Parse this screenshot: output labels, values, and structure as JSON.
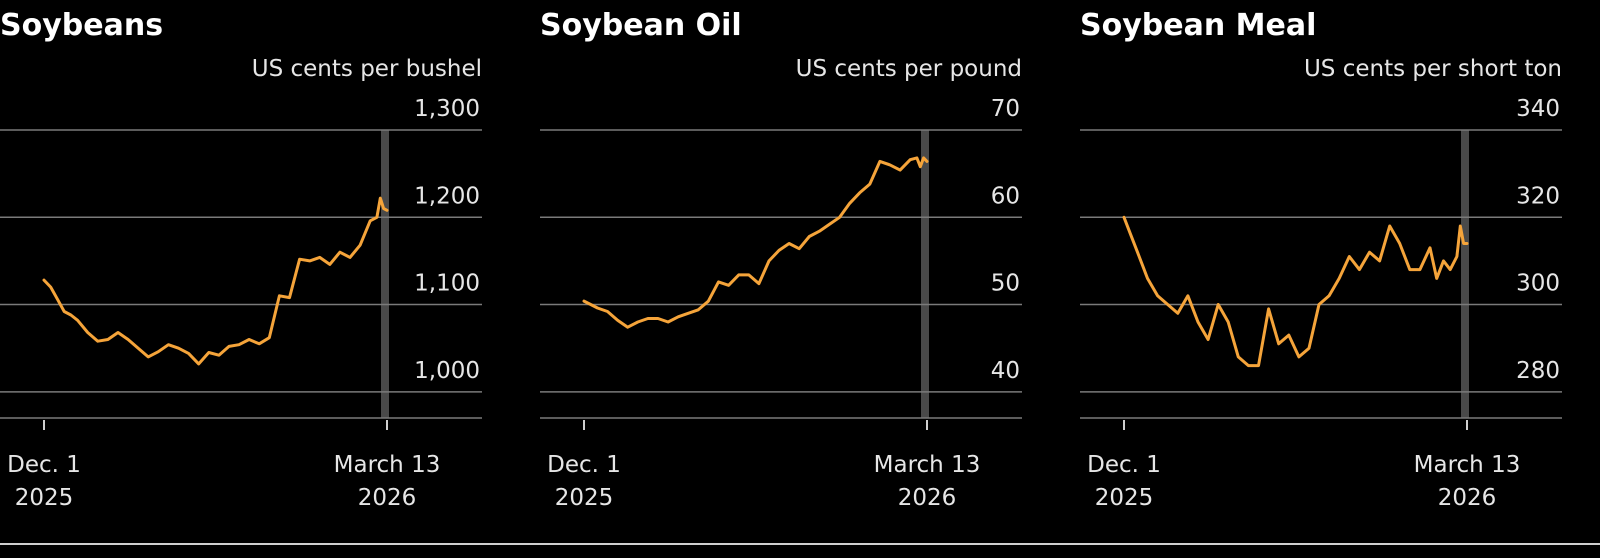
{
  "colors": {
    "background": "#000000",
    "line": "#f5a43a",
    "grid": "#7a7a7a",
    "marker_band": "#4a4a4a",
    "text": "#ffffff"
  },
  "chart_data": [
    {
      "type": "line",
      "title": "Soybeans",
      "ylabel": "US cents per bushel",
      "ylim": [
        970,
        1300
      ],
      "yticks": [
        1000,
        1100,
        1200,
        1300
      ],
      "ytick_labels": [
        "1,000",
        "1,100",
        "1,200",
        "1,300"
      ],
      "x_range": [
        "2025-12-01",
        "2026-03-13"
      ],
      "xtick_labels": [
        [
          "Dec. 1",
          "2025"
        ],
        [
          "March 13",
          "2026"
        ]
      ],
      "series": [
        {
          "x": [
            "2025-12-01",
            "2025-12-03",
            "2025-12-05",
            "2025-12-07",
            "2025-12-09",
            "2025-12-11",
            "2025-12-14",
            "2025-12-17",
            "2025-12-20",
            "2025-12-23",
            "2025-12-26",
            "2025-12-29",
            "2026-01-01",
            "2026-01-04",
            "2026-01-07",
            "2026-01-10",
            "2026-01-13",
            "2026-01-16",
            "2026-01-19",
            "2026-01-22",
            "2026-01-25",
            "2026-01-28",
            "2026-01-31",
            "2026-02-03",
            "2026-02-06",
            "2026-02-09",
            "2026-02-12",
            "2026-02-15",
            "2026-02-18",
            "2026-02-21",
            "2026-02-24",
            "2026-02-27",
            "2026-03-02",
            "2026-03-05",
            "2026-03-08",
            "2026-03-10",
            "2026-03-11",
            "2026-03-12",
            "2026-03-13"
          ],
          "values": [
            1128,
            1120,
            1106,
            1092,
            1088,
            1082,
            1068,
            1058,
            1060,
            1068,
            1060,
            1050,
            1040,
            1046,
            1054,
            1050,
            1044,
            1032,
            1045,
            1042,
            1052,
            1054,
            1060,
            1055,
            1062,
            1110,
            1108,
            1152,
            1150,
            1154,
            1146,
            1160,
            1154,
            1168,
            1196,
            1200,
            1222,
            1210,
            1208
          ]
        }
      ]
    },
    {
      "type": "line",
      "title": "Soybean Oil",
      "ylabel": "US cents per pound",
      "ylim": [
        37,
        70
      ],
      "yticks": [
        40,
        50,
        60,
        70
      ],
      "ytick_labels": [
        "40",
        "50",
        "60",
        "70"
      ],
      "x_range": [
        "2025-12-01",
        "2026-03-13"
      ],
      "xtick_labels": [
        [
          "Dec. 1",
          "2025"
        ],
        [
          "March 13",
          "2026"
        ]
      ],
      "series": [
        {
          "x": [
            "2025-12-01",
            "2025-12-03",
            "2025-12-05",
            "2025-12-08",
            "2025-12-11",
            "2025-12-14",
            "2025-12-17",
            "2025-12-20",
            "2025-12-23",
            "2025-12-26",
            "2025-12-29",
            "2026-01-01",
            "2026-01-04",
            "2026-01-07",
            "2026-01-10",
            "2026-01-13",
            "2026-01-16",
            "2026-01-19",
            "2026-01-22",
            "2026-01-25",
            "2026-01-28",
            "2026-01-31",
            "2026-02-03",
            "2026-02-06",
            "2026-02-09",
            "2026-02-12",
            "2026-02-15",
            "2026-02-18",
            "2026-02-21",
            "2026-02-24",
            "2026-02-27",
            "2026-03-02",
            "2026-03-05",
            "2026-03-08",
            "2026-03-10",
            "2026-03-11",
            "2026-03-12",
            "2026-03-13"
          ],
          "values": [
            50.4,
            50.0,
            49.6,
            49.2,
            48.2,
            47.4,
            48.0,
            48.4,
            48.4,
            48.0,
            48.6,
            49.0,
            49.4,
            50.4,
            52.6,
            52.2,
            53.4,
            53.4,
            52.4,
            55.0,
            56.2,
            57.0,
            56.4,
            57.8,
            58.4,
            59.2,
            60.0,
            61.6,
            62.8,
            63.8,
            66.4,
            66.0,
            65.4,
            66.6,
            66.8,
            65.8,
            66.8,
            66.4
          ]
        }
      ]
    },
    {
      "type": "line",
      "title": "Soybean Meal",
      "ylabel": "US cents per short ton",
      "ylim": [
        274,
        340
      ],
      "yticks": [
        280,
        300,
        320,
        340
      ],
      "ytick_labels": [
        "280",
        "300",
        "320",
        "340"
      ],
      "x_range": [
        "2025-12-01",
        "2026-03-13"
      ],
      "xtick_labels": [
        [
          "Dec. 1",
          "2025"
        ],
        [
          "March 13",
          "2026"
        ]
      ],
      "series": [
        {
          "x": [
            "2025-12-01",
            "2025-12-03",
            "2025-12-05",
            "2025-12-08",
            "2025-12-11",
            "2025-12-14",
            "2025-12-17",
            "2025-12-20",
            "2025-12-23",
            "2025-12-26",
            "2025-12-29",
            "2026-01-01",
            "2026-01-04",
            "2026-01-07",
            "2026-01-10",
            "2026-01-13",
            "2026-01-16",
            "2026-01-19",
            "2026-01-22",
            "2026-01-25",
            "2026-01-28",
            "2026-01-31",
            "2026-02-03",
            "2026-02-06",
            "2026-02-09",
            "2026-02-12",
            "2026-02-15",
            "2026-02-18",
            "2026-02-21",
            "2026-02-24",
            "2026-02-27",
            "2026-03-02",
            "2026-03-04",
            "2026-03-06",
            "2026-03-08",
            "2026-03-10",
            "2026-03-11",
            "2026-03-12",
            "2026-03-13"
          ],
          "values": [
            320,
            316,
            312,
            306,
            302,
            300,
            298,
            302,
            296,
            292,
            300,
            296,
            288,
            286,
            286,
            299,
            291,
            293,
            288,
            290,
            300,
            302,
            306,
            311,
            308,
            312,
            310,
            318,
            314,
            308,
            308,
            313,
            306,
            310,
            308,
            311,
            318,
            314,
            314
          ]
        }
      ]
    }
  ]
}
